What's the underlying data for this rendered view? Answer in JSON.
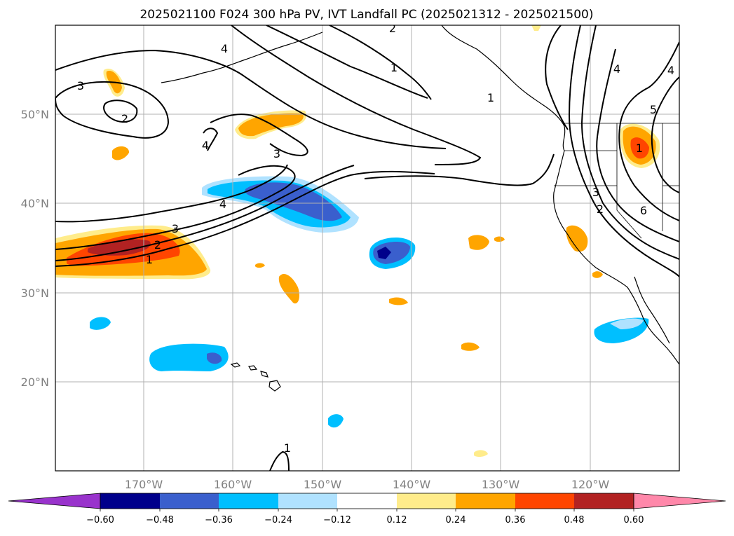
{
  "title": "2025021100 F024 300 hPa PV, IVT Landfall PC (2025021312 - 2025021500)",
  "chart_data": {
    "type": "map",
    "lon_range": [
      -180,
      -110
    ],
    "lat_range": [
      10,
      60
    ],
    "lon_ticks": [
      {
        "value": -170,
        "label": "170°W"
      },
      {
        "value": -160,
        "label": "160°W"
      },
      {
        "value": -150,
        "label": "150°W"
      },
      {
        "value": -140,
        "label": "140°W"
      },
      {
        "value": -130,
        "label": "130°W"
      },
      {
        "value": -120,
        "label": "120°W"
      }
    ],
    "lat_ticks": [
      {
        "value": 20,
        "label": "20°N"
      },
      {
        "value": 30,
        "label": "30°N"
      },
      {
        "value": 40,
        "label": "40°N"
      },
      {
        "value": 50,
        "label": "50°N"
      }
    ],
    "grid": true,
    "colorbar": {
      "colors": [
        "#9933cc",
        "#00008b",
        "#3a5fcd",
        "#00bfff",
        "#b0e2ff",
        "#ffffff",
        "#ffec8b",
        "#ffa500",
        "#ff4500",
        "#b22222",
        "#ff88aa"
      ],
      "boundaries": [
        -0.6,
        -0.48,
        -0.36,
        -0.24,
        -0.12,
        0.12,
        0.24,
        0.36,
        0.48,
        0.6
      ],
      "tick_labels": [
        "−0.60",
        "−0.48",
        "−0.36",
        "−0.24",
        "−0.12",
        "0.12",
        "0.24",
        "0.36",
        "0.48",
        "0.60"
      ],
      "extend": "both"
    },
    "contour_labels": [
      {
        "text": "3",
        "lon": -173,
        "lat": 36
      },
      {
        "text": "2",
        "lon": -178,
        "lat": 35
      },
      {
        "text": "1",
        "lon": -179,
        "lat": 33
      },
      {
        "text": "4",
        "lon": -161,
        "lat": 40
      },
      {
        "text": "4",
        "lon": -168,
        "lat": 47
      },
      {
        "text": "3",
        "lon": -173,
        "lat": 53
      },
      {
        "text": "2",
        "lon": -168,
        "lat": 51
      },
      {
        "text": "3",
        "lon": -155,
        "lat": 45
      },
      {
        "text": "4",
        "lon": -160,
        "lat": 57
      },
      {
        "text": "2",
        "lon": -147,
        "lat": 60
      },
      {
        "text": "1",
        "lon": -142,
        "lat": 55
      },
      {
        "text": "1",
        "lon": -131,
        "lat": 52
      },
      {
        "text": "4",
        "lon": -117,
        "lat": 55
      },
      {
        "text": "4",
        "lon": -111,
        "lat": 55
      },
      {
        "text": "5",
        "lon": -114,
        "lat": 50
      },
      {
        "text": "1",
        "lon": -117,
        "lat": 47
      },
      {
        "text": "3",
        "lon": -120,
        "lat": 41
      },
      {
        "text": "2",
        "lon": -119,
        "lat": 39
      },
      {
        "text": "6",
        "lon": -116,
        "lat": 39
      },
      {
        "text": "1",
        "lon": -154,
        "lat": 12
      }
    ]
  }
}
